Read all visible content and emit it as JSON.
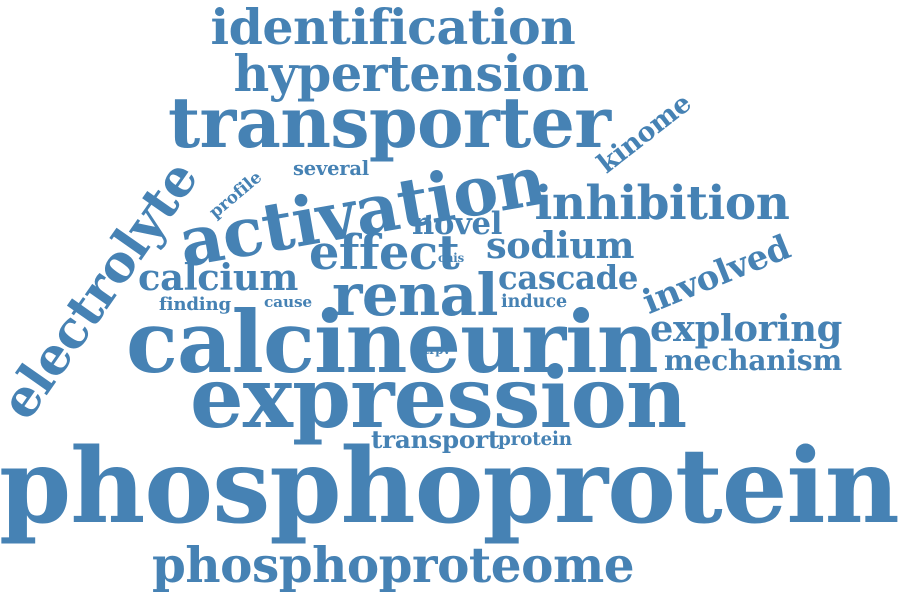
{
  "color": "#4682b4",
  "words": [
    "identification",
    "hypertension",
    "transporter",
    "kinome",
    "electrolyte",
    "profile",
    "several",
    "activation",
    "inhibition",
    "novel",
    "effect",
    "sodium",
    "calcium",
    "cnis",
    "cascade",
    "involved",
    "finding",
    "cause",
    "renal",
    "induce",
    "exploring",
    "calcineurin",
    "mechanism",
    "trpv",
    "expression",
    "transport",
    "protein",
    "phosphoprotein",
    "phosphoproteome"
  ]
}
